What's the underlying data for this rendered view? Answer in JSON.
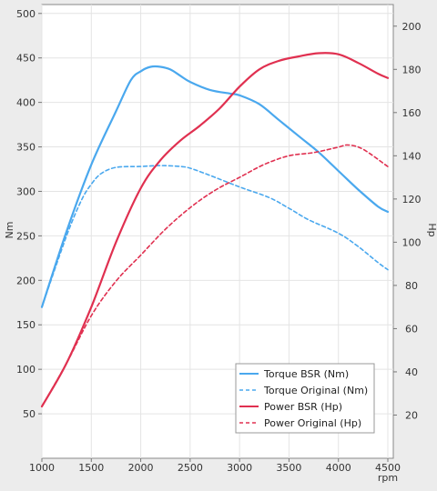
{
  "chart_data": {
    "type": "line",
    "xlabel": "rpm",
    "ylabel_left": "Nm",
    "ylabel_right": "Hp",
    "xlim": [
      1000,
      4500
    ],
    "ylim_left": [
      0,
      510
    ],
    "ylim_right": [
      0,
      210
    ],
    "x_ticks": [
      1000,
      1500,
      2000,
      2500,
      3000,
      3500,
      4000,
      4500
    ],
    "y_ticks_left": [
      50,
      100,
      150,
      200,
      250,
      300,
      350,
      400,
      450,
      500
    ],
    "y_ticks_right": [
      20,
      40,
      60,
      80,
      100,
      120,
      140,
      160,
      180,
      200
    ],
    "grid": true,
    "legend_position": "lower-right",
    "series": [
      {
        "name": "Torque BSR (Nm)",
        "axis": "left",
        "color": "#4aa8ee",
        "dash": "solid",
        "points": [
          [
            1000,
            170
          ],
          [
            1250,
            255
          ],
          [
            1500,
            330
          ],
          [
            1750,
            390
          ],
          [
            1900,
            425
          ],
          [
            2000,
            435
          ],
          [
            2100,
            440
          ],
          [
            2200,
            440
          ],
          [
            2300,
            437
          ],
          [
            2400,
            430
          ],
          [
            2500,
            423
          ],
          [
            2700,
            414
          ],
          [
            2900,
            410
          ],
          [
            3000,
            408
          ],
          [
            3200,
            398
          ],
          [
            3400,
            380
          ],
          [
            3600,
            362
          ],
          [
            3800,
            344
          ],
          [
            4000,
            323
          ],
          [
            4200,
            302
          ],
          [
            4400,
            283
          ],
          [
            4500,
            277
          ]
        ]
      },
      {
        "name": "Torque Original (Nm)",
        "axis": "left",
        "color": "#4aa8ee",
        "dash": "dashed",
        "points": [
          [
            1000,
            170
          ],
          [
            1250,
            250
          ],
          [
            1400,
            290
          ],
          [
            1500,
            308
          ],
          [
            1600,
            320
          ],
          [
            1750,
            327
          ],
          [
            2000,
            328
          ],
          [
            2200,
            329
          ],
          [
            2400,
            328
          ],
          [
            2500,
            326
          ],
          [
            2700,
            318
          ],
          [
            3000,
            305
          ],
          [
            3300,
            293
          ],
          [
            3500,
            281
          ],
          [
            3700,
            268
          ],
          [
            4000,
            253
          ],
          [
            4200,
            238
          ],
          [
            4400,
            220
          ],
          [
            4500,
            212
          ]
        ]
      },
      {
        "name": "Power BSR (Hp)",
        "axis": "right",
        "color": "#e03050",
        "dash": "solid",
        "points": [
          [
            1000,
            24
          ],
          [
            1250,
            44
          ],
          [
            1500,
            70
          ],
          [
            1750,
            100
          ],
          [
            2000,
            125
          ],
          [
            2200,
            138
          ],
          [
            2400,
            147
          ],
          [
            2600,
            154
          ],
          [
            2800,
            162
          ],
          [
            3000,
            172
          ],
          [
            3200,
            180
          ],
          [
            3400,
            184
          ],
          [
            3600,
            186
          ],
          [
            3800,
            187.5
          ],
          [
            4000,
            187
          ],
          [
            4200,
            183
          ],
          [
            4400,
            178
          ],
          [
            4500,
            176
          ]
        ]
      },
      {
        "name": "Power Original (Hp)",
        "axis": "right",
        "color": "#e03050",
        "dash": "dashed",
        "points": [
          [
            1000,
            24
          ],
          [
            1250,
            44
          ],
          [
            1500,
            66
          ],
          [
            1750,
            82
          ],
          [
            2000,
            94
          ],
          [
            2250,
            106
          ],
          [
            2500,
            116
          ],
          [
            2750,
            124
          ],
          [
            3000,
            130
          ],
          [
            3250,
            136
          ],
          [
            3500,
            140
          ],
          [
            3750,
            141.5
          ],
          [
            4000,
            144
          ],
          [
            4100,
            145
          ],
          [
            4250,
            143
          ],
          [
            4500,
            135
          ]
        ]
      }
    ]
  }
}
